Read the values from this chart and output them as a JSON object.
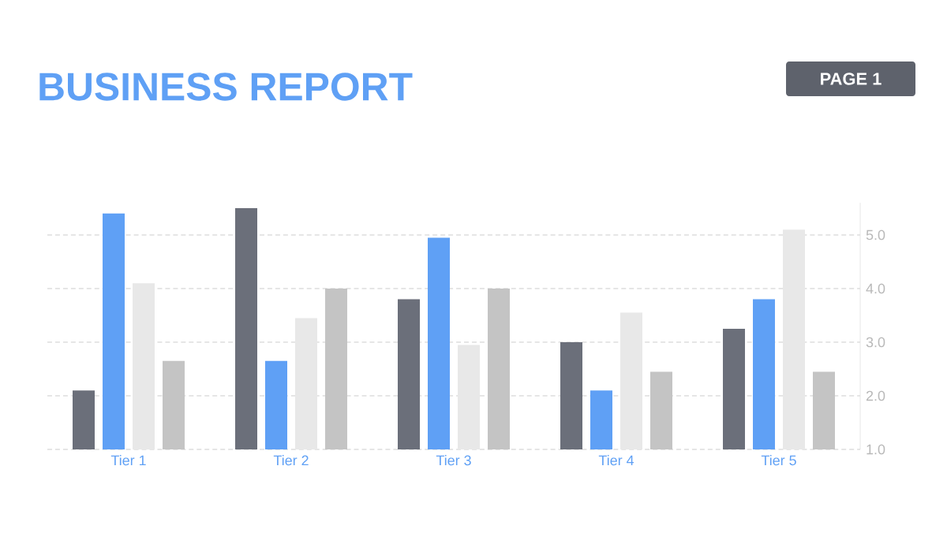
{
  "chart_data": {
    "type": "bar",
    "title": "BUSINESS REPORT",
    "annotations": [
      "PAGE 1"
    ],
    "categories": [
      "Tier 1",
      "Tier 2",
      "Tier 3",
      "Tier 4",
      "Tier 5"
    ],
    "series": [
      {
        "color": "#6b6f7a",
        "values": [
          2.1,
          5.5,
          3.8,
          3.0,
          3.25
        ]
      },
      {
        "color": "#5fa0f5",
        "values": [
          5.4,
          2.65,
          4.95,
          2.1,
          3.8
        ]
      },
      {
        "color": "#e8e8e8",
        "values": [
          4.1,
          3.45,
          2.95,
          3.55,
          5.1
        ]
      },
      {
        "color": "#c4c4c4",
        "values": [
          2.65,
          4.0,
          4.0,
          2.45,
          2.45
        ]
      }
    ],
    "ylim": [
      1,
      5.6
    ],
    "yticks": [
      {
        "value": 1,
        "label": "1.0"
      },
      {
        "value": 2,
        "label": "2.0"
      },
      {
        "value": 3,
        "label": "3.0"
      },
      {
        "value": 4,
        "label": "4.0"
      },
      {
        "value": 5,
        "label": "5.0"
      }
    ],
    "grid": "y"
  }
}
